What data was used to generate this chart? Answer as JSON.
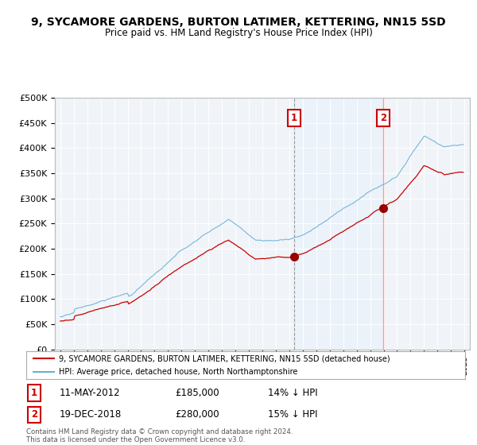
{
  "title": "9, SYCAMORE GARDENS, BURTON LATIMER, KETTERING, NN15 5SD",
  "subtitle": "Price paid vs. HM Land Registry's House Price Index (HPI)",
  "ylabel_ticks": [
    "£0",
    "£50K",
    "£100K",
    "£150K",
    "£200K",
    "£250K",
    "£300K",
    "£350K",
    "£400K",
    "£450K",
    "£500K"
  ],
  "ytick_values": [
    0,
    50000,
    100000,
    150000,
    200000,
    250000,
    300000,
    350000,
    400000,
    450000,
    500000
  ],
  "x_start_year": 1995,
  "x_end_year": 2025,
  "sale1_date": "11-MAY-2012",
  "sale1_price": 185000,
  "sale1_label": "1",
  "sale1_pct": "14% ↓ HPI",
  "sale2_date": "19-DEC-2018",
  "sale2_price": 280000,
  "sale2_label": "2",
  "sale2_pct": "15% ↓ HPI",
  "sale1_x": 2012.37,
  "sale2_x": 2018.97,
  "legend_line1": "9, SYCAMORE GARDENS, BURTON LATIMER, KETTERING, NN15 5SD (detached house)",
  "legend_line2": "HPI: Average price, detached house, North Northamptonshire",
  "footer": "Contains HM Land Registry data © Crown copyright and database right 2024.\nThis data is licensed under the Open Government Licence v3.0.",
  "hpi_color": "#6baed6",
  "price_color": "#cc0000",
  "vline1_color": "#aaaaaa",
  "vline2_color": "#ff8888",
  "shade_color": "#ddeeff",
  "marker_color": "#990000",
  "background_color": "#ffffff",
  "plot_bg_color": "#f0f4f8"
}
